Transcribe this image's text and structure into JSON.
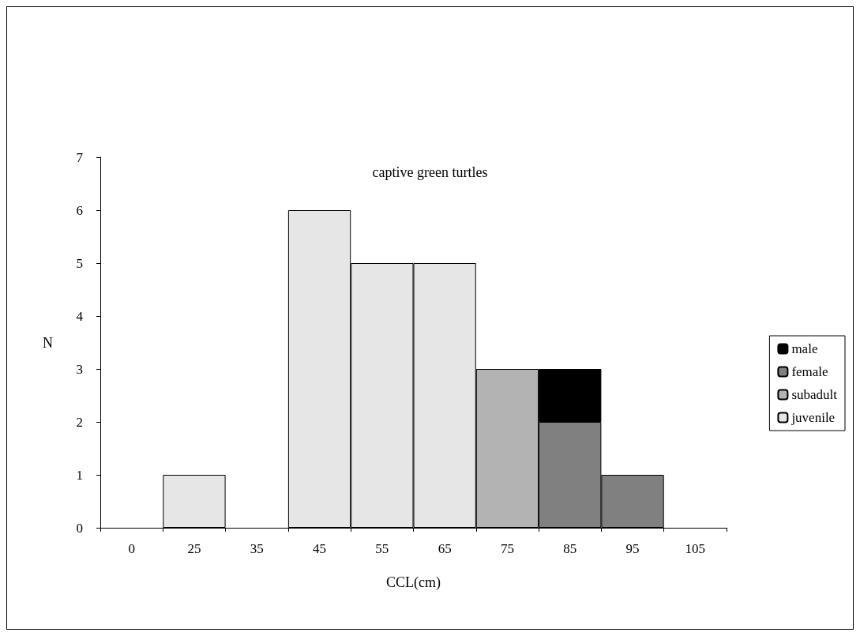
{
  "chart_data": {
    "type": "bar",
    "title": "captive green turtles",
    "xlabel": "CCL(cm)",
    "ylabel": "N",
    "categories": [
      "0",
      "25",
      "35",
      "45",
      "55",
      "65",
      "75",
      "85",
      "95",
      "105"
    ],
    "stacked": true,
    "ylim": [
      0,
      7
    ],
    "yticks": [
      0,
      1,
      2,
      3,
      4,
      5,
      6,
      7
    ],
    "legend": "right",
    "series": [
      {
        "name": "juvenile",
        "color": "#e6e6e6",
        "values": [
          null,
          1,
          null,
          6,
          5,
          5,
          null,
          null,
          null,
          null
        ]
      },
      {
        "name": "subadult",
        "color": "#b3b3b3",
        "values": [
          null,
          null,
          null,
          null,
          null,
          null,
          3,
          null,
          null,
          null
        ]
      },
      {
        "name": "female",
        "color": "#808080",
        "values": [
          null,
          null,
          null,
          null,
          null,
          null,
          null,
          2,
          1,
          null
        ]
      },
      {
        "name": "male",
        "color": "#000000",
        "values": [
          null,
          null,
          null,
          null,
          null,
          null,
          null,
          1,
          null,
          null
        ]
      }
    ]
  }
}
